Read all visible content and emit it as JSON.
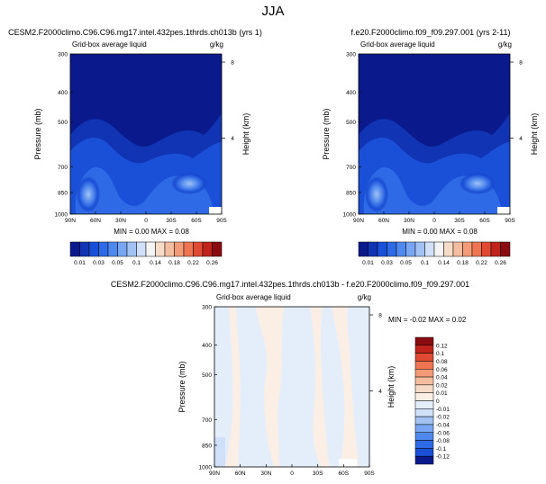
{
  "page_title": "JJA",
  "chart_data": [
    {
      "type": "heatmap",
      "title": "CESM2.F2000climo.C96.C96.mg17.intel.432pes.1thrds.ch013b (yrs 1)",
      "subtitle_left": "Grid-box average liquid",
      "subtitle_right": "g/kg",
      "ylabel": "Pressure (mb)",
      "ylabel_right": "Height (km)",
      "x_ticks": [
        "90N",
        "60N",
        "30N",
        "0",
        "30S",
        "60S",
        "90S"
      ],
      "y_ticks": [
        "300",
        "400",
        "500",
        "700",
        "850",
        "1000"
      ],
      "y_right_ticks": [
        "8",
        "4"
      ],
      "stats": "MIN =  0.00  MAX =  0.08",
      "colorbar": {
        "labels": [
          "0.01",
          "0.03",
          "0.05",
          "0.1",
          "0.14",
          "0.18",
          "0.22",
          "0.26"
        ],
        "levels": [
          0.01,
          0.02,
          0.03,
          0.04,
          0.05,
          0.07,
          0.1,
          0.12,
          0.14,
          0.16,
          0.18,
          0.2,
          0.22,
          0.24,
          0.26
        ],
        "colors": [
          "#0a1a8c",
          "#1034b4",
          "#1a50d8",
          "#2e6ae6",
          "#4f88ee",
          "#78a6f2",
          "#a2c2f4",
          "#cfe0f8",
          "#f4f4f4",
          "#f6dcc8",
          "#f5bda0",
          "#f39a76",
          "#ef7452",
          "#e04a32",
          "#c0221c",
          "#8a0b10"
        ]
      }
    },
    {
      "type": "heatmap",
      "title": "f.e20.F2000climo.f09_f09.297.001 (yrs 2-11)",
      "subtitle_left": "Grid-box average liquid",
      "subtitle_right": "g/kg",
      "ylabel": "Pressure (mb)",
      "ylabel_right": "Height (km)",
      "x_ticks": [
        "90N",
        "60N",
        "30N",
        "0",
        "30S",
        "60S",
        "90S"
      ],
      "y_ticks": [
        "300",
        "400",
        "500",
        "700",
        "850",
        "1000"
      ],
      "y_right_ticks": [
        "8",
        "4"
      ],
      "stats": "MIN =  0.00  MAX =  0.08",
      "colorbar": {
        "labels": [
          "0.01",
          "0.03",
          "0.05",
          "0.1",
          "0.14",
          "0.18",
          "0.22",
          "0.26"
        ]
      }
    },
    {
      "type": "heatmap",
      "title": "CESM2.F2000climo.C96.C96.mg17.intel.432pes.1thrds.ch013b - f.e20.F2000climo.f09_f09.297.001",
      "subtitle_left": "Grid-box average liquid",
      "subtitle_right": "g/kg",
      "ylabel": "Pressure (mb)",
      "ylabel_right": "Height (km)",
      "x_ticks": [
        "90N",
        "60N",
        "30N",
        "0",
        "30S",
        "60S",
        "90S"
      ],
      "y_ticks": [
        "300",
        "400",
        "500",
        "700",
        "850",
        "1000"
      ],
      "y_right_ticks": [
        "8",
        "4"
      ],
      "stats": "MIN = -0.02  MAX =   0.02",
      "colorbar": {
        "labels": [
          "0.12",
          "0.1",
          "0.08",
          "0.06",
          "0.04",
          "0.02",
          "0.01",
          "0",
          "-0.01",
          "-0.02",
          "-0.04",
          "-0.06",
          "-0.08",
          "-0.1",
          "-0.12"
        ],
        "colors": [
          "#8a0b10",
          "#c0221c",
          "#e04a32",
          "#ef7452",
          "#f39a76",
          "#f5bda0",
          "#f6dcc8",
          "#fbeee4",
          "#e4eefa",
          "#cfe0f8",
          "#a2c2f4",
          "#78a6f2",
          "#4f88ee",
          "#2e6ae6",
          "#1a50d8",
          "#0a1a8c"
        ]
      }
    }
  ]
}
